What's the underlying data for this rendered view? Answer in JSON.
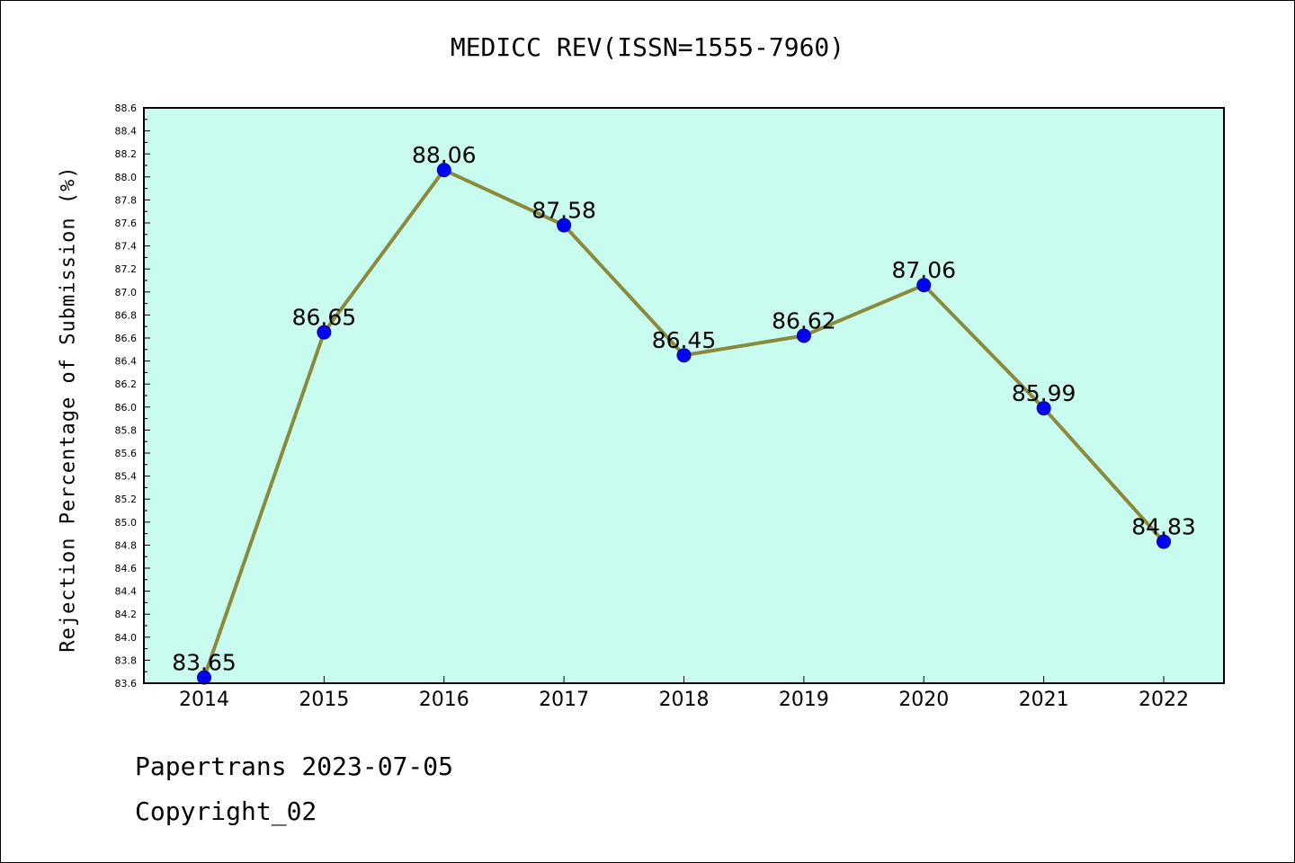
{
  "chart_data": {
    "type": "line",
    "title": "MEDICC REV(ISSN=1555-7960)",
    "xlabel": "",
    "ylabel": "Rejection Percentage of Submission (%)",
    "categories": [
      "2014",
      "2015",
      "2016",
      "2017",
      "2018",
      "2019",
      "2020",
      "2021",
      "2022"
    ],
    "series": [
      {
        "values": [
          83.65,
          86.65,
          88.06,
          87.58,
          86.45,
          86.62,
          87.06,
          85.99,
          84.83
        ],
        "labels": [
          "83.65",
          "86.65",
          "88.06",
          "87.58",
          "86.45",
          "86.62",
          "87.06",
          "85.99",
          "84.83"
        ]
      }
    ],
    "ylim": [
      83.6,
      88.6
    ],
    "yticks": [
      "83.6",
      "83.8",
      "84.0",
      "84.2",
      "84.4",
      "84.6",
      "84.8",
      "85.0",
      "85.2",
      "85.4",
      "85.6",
      "85.8",
      "86.0",
      "86.2",
      "86.4",
      "86.6",
      "86.8",
      "87.0",
      "87.2",
      "87.4",
      "87.6",
      "87.8",
      "88.0",
      "88.2",
      "88.4",
      "88.6"
    ],
    "grid": false,
    "colors": {
      "plot_background": "#c8fcee",
      "line": "#8b8a3a",
      "marker": "#0000ff"
    }
  },
  "footer": {
    "line1": "Papertrans 2023-07-05",
    "line2": "Copyright_02"
  }
}
